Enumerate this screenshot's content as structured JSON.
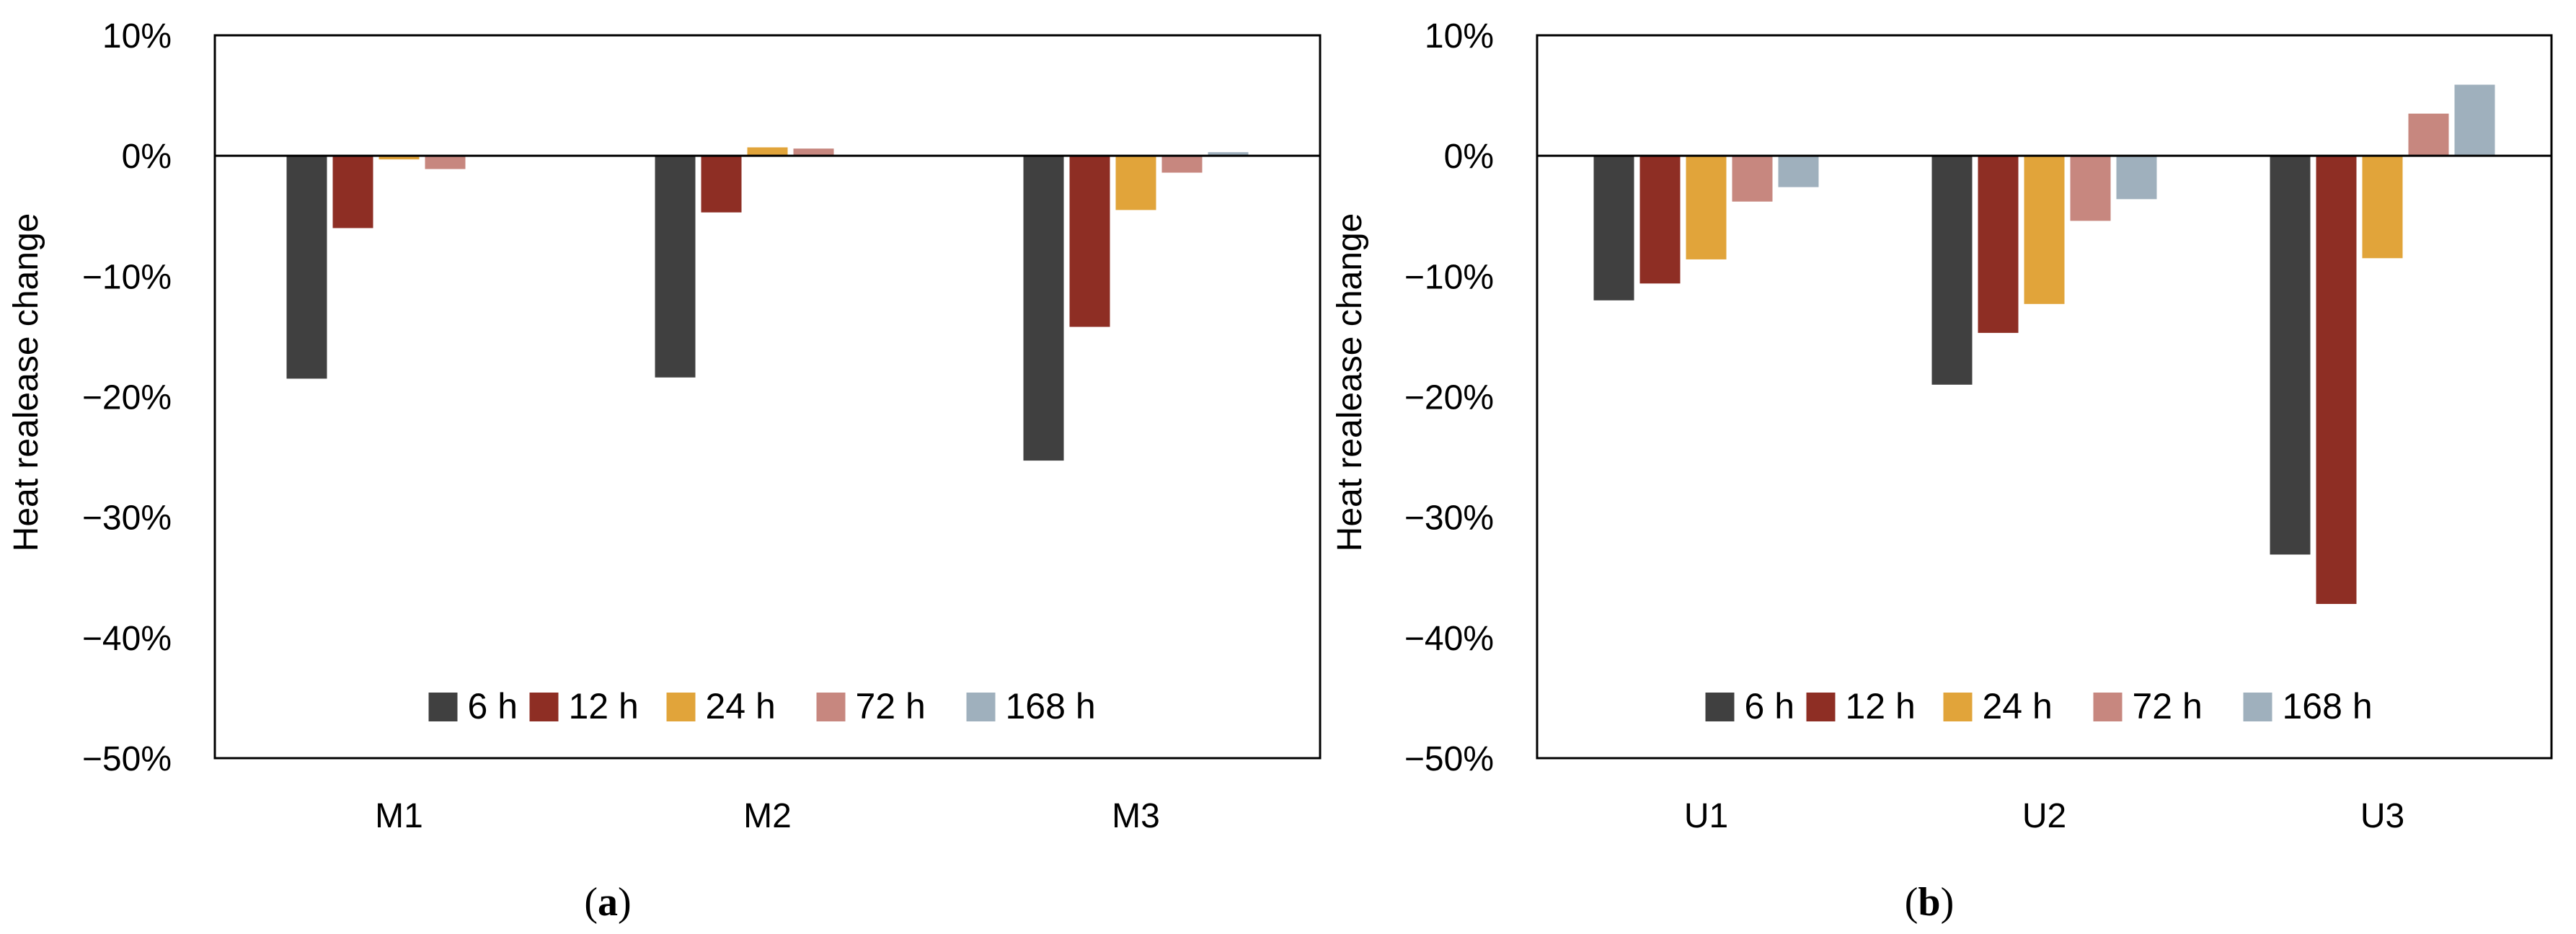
{
  "colors": {
    "6 h": "#404040",
    "12 h": "#8e2e24",
    "24 h": "#e1a43a",
    "72 h": "#c7877f",
    "168 h": "#9fb0bd"
  },
  "chart_data": [
    {
      "type": "bar",
      "panel": "a",
      "caption_letter": "a",
      "title": "",
      "ylabel": "Heat realease change",
      "xlabel": "",
      "ylim": [
        -50,
        10
      ],
      "yticks": [
        10,
        0,
        -10,
        -20,
        -30,
        -40,
        -50
      ],
      "ytick_labels": [
        "10%",
        "0%",
        "−10%",
        "−20%",
        "−30%",
        "−40%",
        "−50%"
      ],
      "categories": [
        "M1",
        "M2",
        "M3"
      ],
      "legend_position": "bottom",
      "series": [
        {
          "name": "6 h",
          "values": [
            -18.5,
            -18.4,
            -25.3
          ]
        },
        {
          "name": "12 h",
          "values": [
            -6.0,
            -4.7,
            -14.2
          ]
        },
        {
          "name": "24 h",
          "values": [
            -0.3,
            0.7,
            -4.5
          ]
        },
        {
          "name": "72 h",
          "values": [
            -1.1,
            0.6,
            -1.4
          ]
        },
        {
          "name": "168 h",
          "values": [
            0.0,
            0.0,
            0.3
          ]
        }
      ]
    },
    {
      "type": "bar",
      "panel": "b",
      "caption_letter": "b",
      "title": "",
      "ylabel": "Heat realease change",
      "xlabel": "",
      "ylim": [
        -50,
        10
      ],
      "yticks": [
        10,
        0,
        -10,
        -20,
        -30,
        -40,
        -50
      ],
      "ytick_labels": [
        "10%",
        "0%",
        "−10%",
        "−20%",
        "−30%",
        "−40%",
        "−50%"
      ],
      "categories": [
        "U1",
        "U2",
        "U3"
      ],
      "legend_position": "bottom",
      "series": [
        {
          "name": "6 h",
          "values": [
            -12.0,
            -19.0,
            -33.1
          ]
        },
        {
          "name": "12 h",
          "values": [
            -10.6,
            -14.7,
            -37.2
          ]
        },
        {
          "name": "24 h",
          "values": [
            -8.6,
            -12.3,
            -8.5
          ]
        },
        {
          "name": "72 h",
          "values": [
            -3.8,
            -5.4,
            3.5
          ]
        },
        {
          "name": "168 h",
          "values": [
            -2.6,
            -3.6,
            5.9
          ]
        }
      ]
    }
  ]
}
